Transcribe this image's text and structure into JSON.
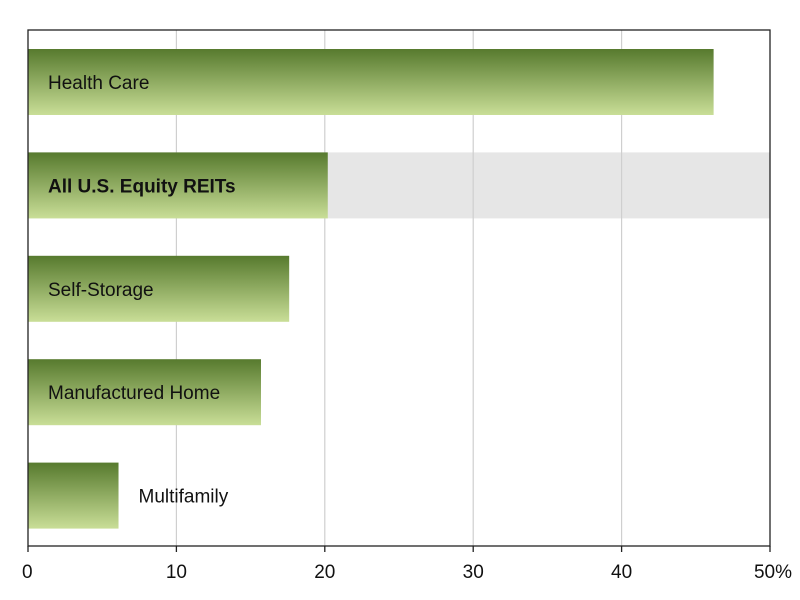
{
  "chart_data": {
    "type": "bar",
    "orientation": "horizontal",
    "categories": [
      "Health Care",
      "All U.S. Equity REITs",
      "Self-Storage",
      "Manufactured Home",
      "Multifamily"
    ],
    "values": [
      46.2,
      20.2,
      17.6,
      15.7,
      6.1
    ],
    "highlighted_category": "All U.S. Equity REITs",
    "label_placement": [
      "inside",
      "inside",
      "inside",
      "inside",
      "outside"
    ],
    "xlim": [
      0,
      50
    ],
    "x_ticks": [
      0,
      10,
      20,
      30,
      40,
      50
    ],
    "x_tick_labels": [
      "0",
      "10",
      "20",
      "30",
      "40",
      "50%"
    ],
    "grid": true,
    "title": "",
    "xlabel": "",
    "ylabel": "",
    "colors": {
      "bar_top": "#577a2e",
      "bar_bottom": "#c9de97",
      "highlight_band": "#e6e6e6",
      "grid": "#cfcfcf",
      "axis": "#222222"
    }
  }
}
